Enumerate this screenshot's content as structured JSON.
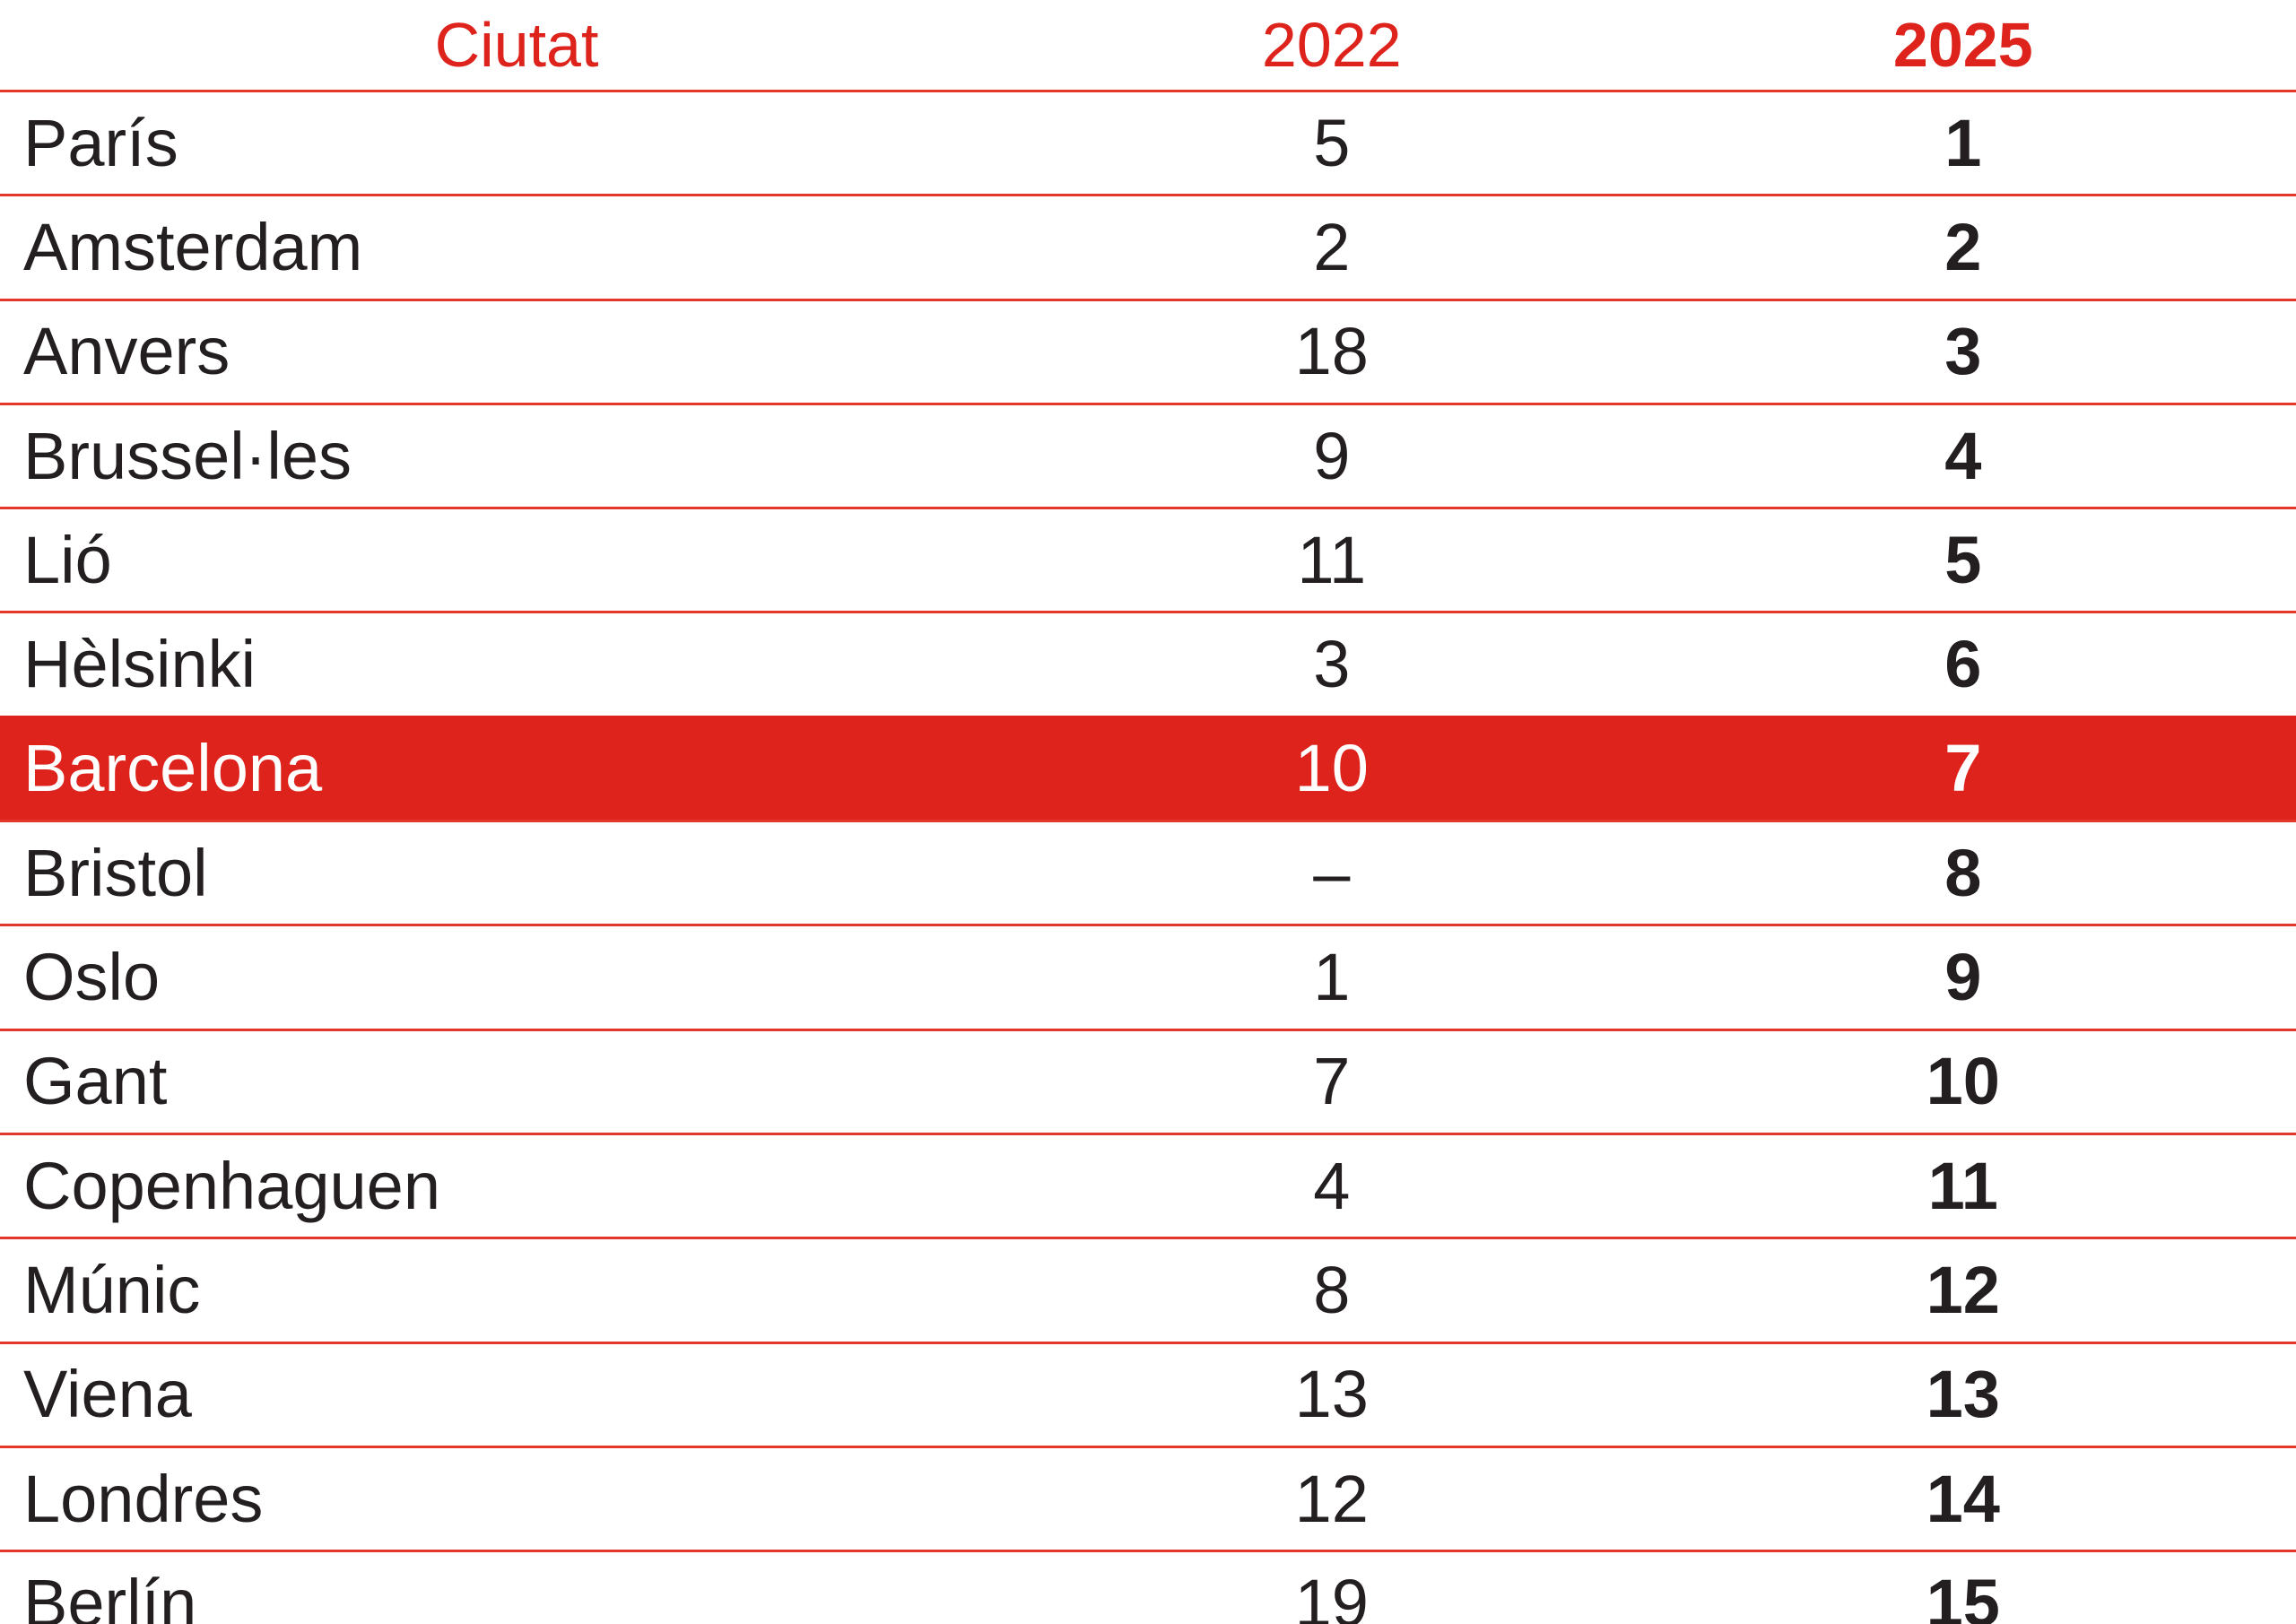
{
  "chart_data": {
    "type": "table",
    "columns": [
      "Ciutat",
      "2022",
      "2025"
    ],
    "rows": [
      {
        "city": "París",
        "y2022": "5",
        "y2025": "1",
        "highlight": false
      },
      {
        "city": "Amsterdam",
        "y2022": "2",
        "y2025": "2",
        "highlight": false
      },
      {
        "city": "Anvers",
        "y2022": "18",
        "y2025": "3",
        "highlight": false
      },
      {
        "city": "Brussel·les",
        "y2022": "9",
        "y2025": "4",
        "highlight": false
      },
      {
        "city": "Lió",
        "y2022": "11",
        "y2025": "5",
        "highlight": false
      },
      {
        "city": "Hèlsinki",
        "y2022": "3",
        "y2025": "6",
        "highlight": false
      },
      {
        "city": "Barcelona",
        "y2022": "10",
        "y2025": "7",
        "highlight": true
      },
      {
        "city": "Bristol",
        "y2022": "–",
        "y2025": "8",
        "highlight": false
      },
      {
        "city": "Oslo",
        "y2022": "1",
        "y2025": "9",
        "highlight": false
      },
      {
        "city": "Gant",
        "y2022": "7",
        "y2025": "10",
        "highlight": false
      },
      {
        "city": "Copenhaguen",
        "y2022": "4",
        "y2025": "11",
        "highlight": false
      },
      {
        "city": "Múnic",
        "y2022": "8",
        "y2025": "12",
        "highlight": false
      },
      {
        "city": "Viena",
        "y2022": "13",
        "y2025": "13",
        "highlight": false
      },
      {
        "city": "Londres",
        "y2022": "12",
        "y2025": "14",
        "highlight": false
      },
      {
        "city": "Berlín",
        "y2022": "19",
        "y2025": "15",
        "highlight": false
      }
    ],
    "layout": {
      "highlighted_row": "Barcelona",
      "grid": "horizontal-red-lines"
    },
    "colors": {
      "accent_red": "#dd231c",
      "row_line_red": "#e4372b",
      "text": "#231f20",
      "highlight_text": "#ffffff"
    }
  }
}
